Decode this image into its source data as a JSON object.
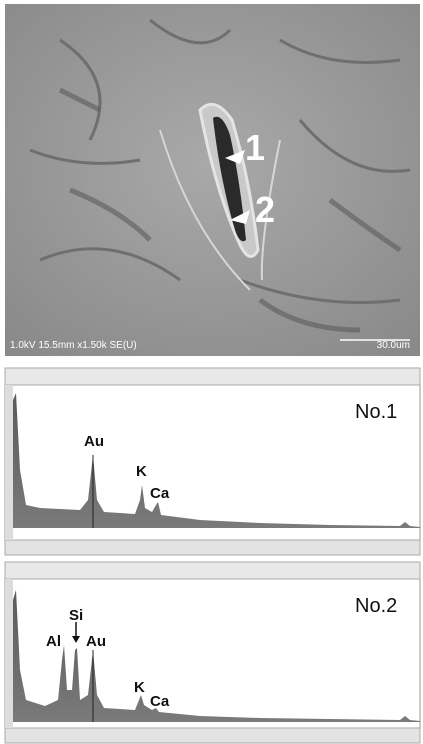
{
  "sem_image": {
    "caption": "1.0kV 15.5mm x1.50k SE(U)",
    "scale_bar": "30.0um",
    "markers": [
      "1",
      "2"
    ]
  },
  "spectra": [
    {
      "title": "No.1",
      "peaks": [
        "Au",
        "K",
        "Ca"
      ]
    },
    {
      "title": "No.2",
      "peaks": [
        "Al",
        "Si",
        "Au",
        "K",
        "Ca"
      ]
    }
  ]
}
